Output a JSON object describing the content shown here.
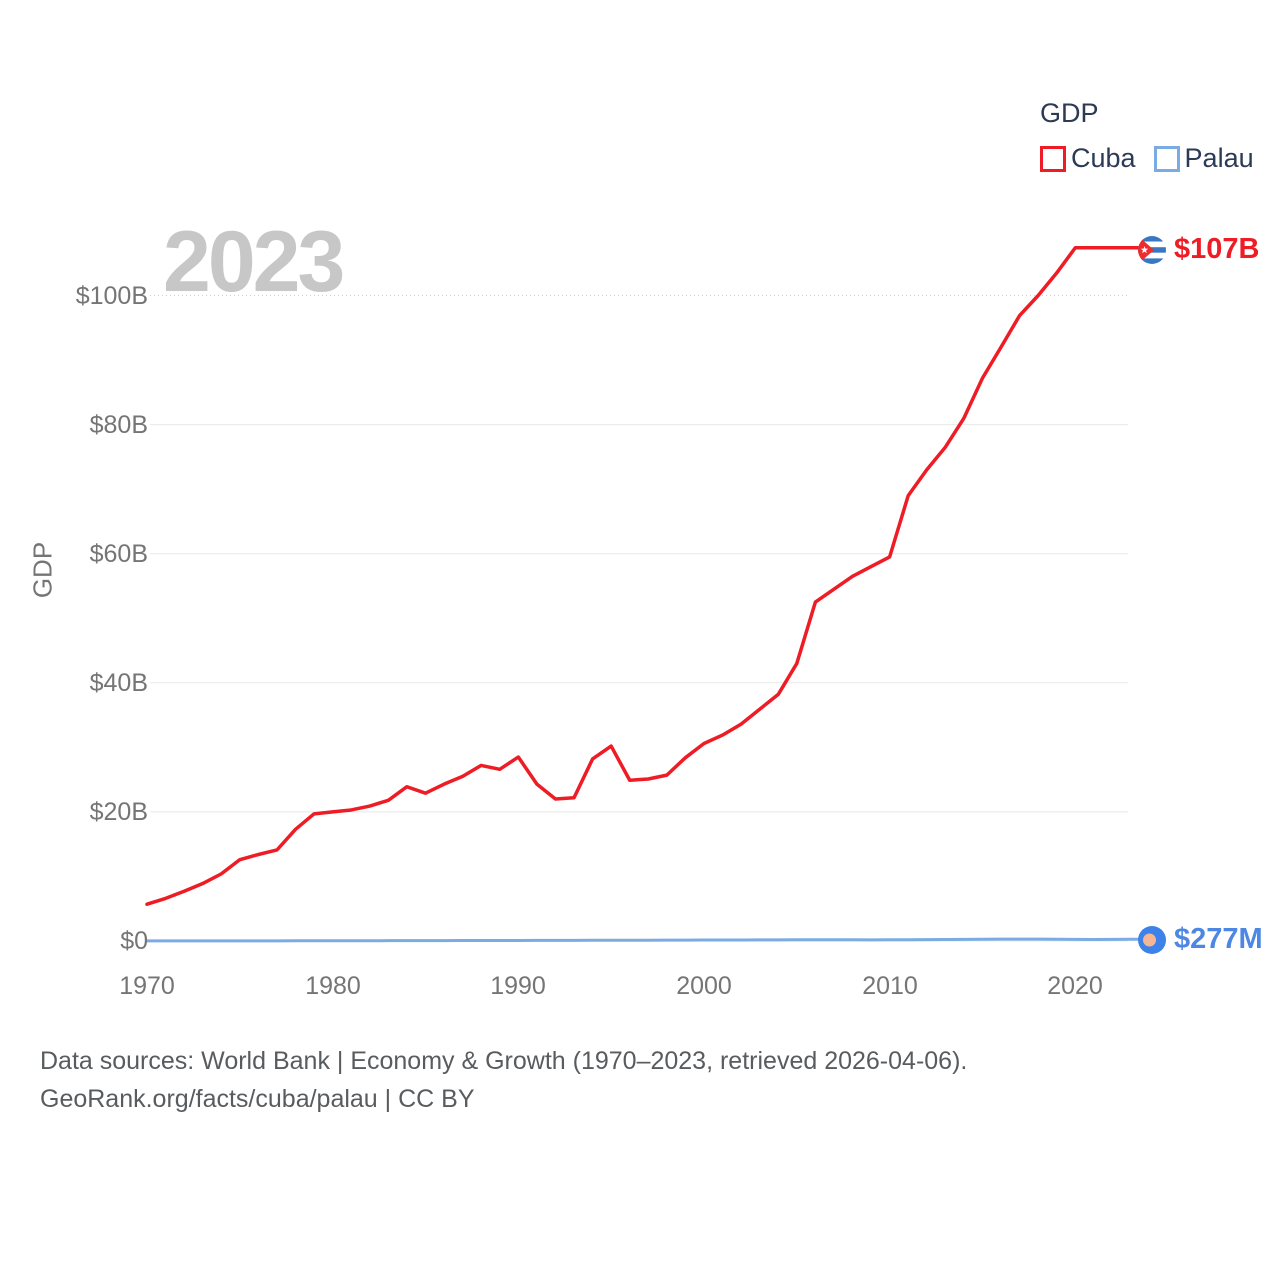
{
  "watermark_year": "2023",
  "legend": {
    "title": "GDP",
    "items": [
      {
        "label": "Cuba",
        "color": "#ee1c25"
      },
      {
        "label": "Palau",
        "color": "#7aabe2"
      }
    ]
  },
  "y_axis": {
    "title": "GDP",
    "ticks": [
      "$100B",
      "$80B",
      "$60B",
      "$40B",
      "$20B",
      "$0"
    ],
    "tick_values": [
      100,
      80,
      60,
      40,
      20,
      0
    ]
  },
  "x_axis": {
    "ticks": [
      "1970",
      "1980",
      "1990",
      "2000",
      "2010",
      "2020"
    ],
    "tick_values": [
      1970,
      1980,
      1990,
      2000,
      2010,
      2020
    ]
  },
  "end_labels": [
    {
      "series": "Cuba",
      "text": "$107B",
      "color": "#ee1c25",
      "icon": "cuba-flag-icon"
    },
    {
      "series": "Palau",
      "text": "$277M",
      "color": "#4d87e4",
      "icon": "palau-flag-icon"
    }
  ],
  "footer": {
    "line1": "Data sources: World Bank | Economy & Growth (1970–2023, retrieved 2026-04-06).",
    "line2": "GeoRank.org/facts/cuba/palau | CC BY"
  },
  "chart_data": {
    "type": "line",
    "title": "GDP",
    "ylabel": "GDP",
    "xlim": [
      1970,
      2023
    ],
    "ylim": [
      0,
      110
    ],
    "grid": true,
    "legend_position": "top-right",
    "units": "billions USD",
    "x": [
      1970,
      1971,
      1972,
      1973,
      1974,
      1975,
      1976,
      1977,
      1978,
      1979,
      1980,
      1981,
      1982,
      1983,
      1984,
      1985,
      1986,
      1987,
      1988,
      1989,
      1990,
      1991,
      1992,
      1993,
      1994,
      1995,
      1996,
      1997,
      1998,
      1999,
      2000,
      2001,
      2002,
      2003,
      2004,
      2005,
      2006,
      2007,
      2008,
      2009,
      2010,
      2011,
      2012,
      2013,
      2014,
      2015,
      2016,
      2017,
      2018,
      2019,
      2020,
      2021,
      2022,
      2023
    ],
    "series": [
      {
        "name": "Cuba",
        "color": "#ee1c25",
        "end_value_label": "$107B",
        "values": [
          5.7,
          6.6,
          7.7,
          8.9,
          10.4,
          12.6,
          13.4,
          14.1,
          17.3,
          19.7,
          20.0,
          20.3,
          20.9,
          21.8,
          23.9,
          22.9,
          24.3,
          25.5,
          27.2,
          26.6,
          28.5,
          24.3,
          22.0,
          22.2,
          28.2,
          30.2,
          24.9,
          25.1,
          25.7,
          28.4,
          30.6,
          31.9,
          33.6,
          35.9,
          38.2,
          43.0,
          52.5,
          54.5,
          56.5,
          58.0,
          59.5,
          69.0,
          73.0,
          76.5,
          81.0,
          87.2,
          92.0,
          96.9,
          100.0,
          103.5,
          107.4,
          107.4,
          107.4,
          107.4
        ]
      },
      {
        "name": "Palau",
        "color": "#7aabe2",
        "end_value_label": "$277M",
        "values": [
          0.01,
          0.01,
          0.01,
          0.01,
          0.02,
          0.02,
          0.02,
          0.02,
          0.03,
          0.03,
          0.03,
          0.04,
          0.04,
          0.05,
          0.05,
          0.06,
          0.06,
          0.07,
          0.07,
          0.08,
          0.08,
          0.09,
          0.1,
          0.1,
          0.11,
          0.11,
          0.12,
          0.12,
          0.13,
          0.14,
          0.15,
          0.15,
          0.16,
          0.17,
          0.18,
          0.19,
          0.19,
          0.19,
          0.19,
          0.18,
          0.19,
          0.2,
          0.22,
          0.23,
          0.25,
          0.28,
          0.3,
          0.29,
          0.29,
          0.28,
          0.26,
          0.24,
          0.25,
          0.277
        ]
      }
    ]
  }
}
